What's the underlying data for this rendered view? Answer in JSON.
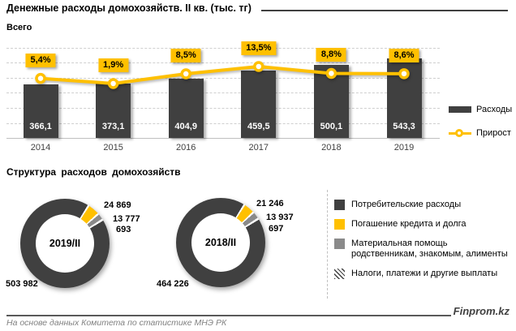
{
  "header": {
    "title": "Денежные расходы домохозяйств. II кв.  (тыс. тг)",
    "brand": "Finprom.kz"
  },
  "footer": {
    "source": "На основе данных  Комитета по статистике МНЭ РК"
  },
  "chart_data": [
    {
      "type": "bar",
      "title": "Всего",
      "categories": [
        "2014",
        "2015",
        "2016",
        "2017",
        "2018",
        "2019"
      ],
      "series": [
        {
          "name": "Расходы",
          "type": "bar",
          "color": "#404040",
          "values": [
            366.1,
            373.1,
            404.9,
            459.5,
            500.1,
            543.3
          ],
          "labels": [
            "366,1",
            "373,1",
            "404,9",
            "459,5",
            "500,1",
            "543,3"
          ]
        },
        {
          "name": "Прирост",
          "type": "line",
          "color": "#FFC000",
          "axis": "secondary",
          "unit": "%",
          "values": [
            5.4,
            1.9,
            8.5,
            13.5,
            8.8,
            8.6
          ],
          "labels": [
            "5,4%",
            "1,9%",
            "8,5%",
            "13,5%",
            "8,8%",
            "8,6%"
          ]
        }
      ],
      "legend_position": "right",
      "grid": "horizontal-dashed"
    },
    {
      "type": "pie",
      "subtype": "donut",
      "title": "Структура расходов домохозяйств",
      "legend": [
        {
          "label": "Потребительские расходы",
          "color": "#404040",
          "pattern": "solid"
        },
        {
          "label": "Погашение кредита и долга",
          "color": "#FFC000",
          "pattern": "solid"
        },
        {
          "label": "Материальная помощь родственникам, знакомым, алименты",
          "color": "#8A8A8A",
          "pattern": "solid"
        },
        {
          "label": "Налоги, платежи и другие выплаты",
          "color": "#404040",
          "pattern": "hatch"
        }
      ],
      "charts": [
        {
          "center_label": "2019/II",
          "values": [
            503982,
            24869,
            13777,
            693
          ],
          "labels": [
            "503 982",
            "24 869",
            "13 777",
            "693"
          ]
        },
        {
          "center_label": "2018/II",
          "values": [
            464226,
            21246,
            13937,
            697
          ],
          "labels": [
            "464 226",
            "21 246",
            "13 937",
            "697"
          ]
        }
      ]
    }
  ]
}
